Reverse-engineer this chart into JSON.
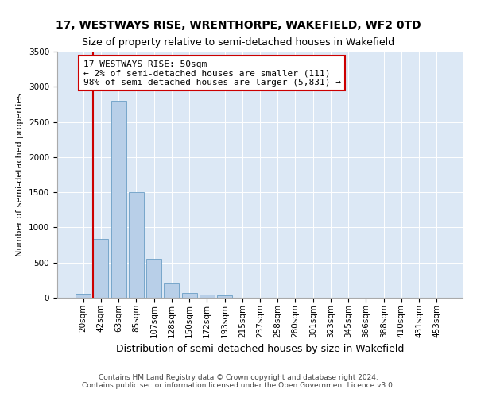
{
  "title": "17, WESTWAYS RISE, WRENTHORPE, WAKEFIELD, WF2 0TD",
  "subtitle": "Size of property relative to semi-detached houses in Wakefield",
  "xlabel": "Distribution of semi-detached houses by size in Wakefield",
  "ylabel": "Number of semi-detached properties",
  "categories": [
    "20sqm",
    "42sqm",
    "63sqm",
    "85sqm",
    "107sqm",
    "128sqm",
    "150sqm",
    "172sqm",
    "193sqm",
    "215sqm",
    "237sqm",
    "258sqm",
    "280sqm",
    "301sqm",
    "323sqm",
    "345sqm",
    "366sqm",
    "388sqm",
    "410sqm",
    "431sqm",
    "453sqm"
  ],
  "bar_values": [
    60,
    830,
    2800,
    1500,
    550,
    200,
    65,
    50,
    30,
    0,
    0,
    0,
    0,
    0,
    0,
    0,
    0,
    0,
    0,
    0,
    0
  ],
  "bar_color": "#b8cfe8",
  "bar_edge_color": "#6a9ec5",
  "property_line_color": "#cc0000",
  "annotation_text": "17 WESTWAYS RISE: 50sqm\n← 2% of semi-detached houses are smaller (111)\n98% of semi-detached houses are larger (5,831) →",
  "annotation_box_color": "#ffffff",
  "annotation_box_edge": "#cc0000",
  "ylim": [
    0,
    3500
  ],
  "yticks": [
    0,
    500,
    1000,
    1500,
    2000,
    2500,
    3000,
    3500
  ],
  "background_color": "#dce8f5",
  "footer_text": "Contains HM Land Registry data © Crown copyright and database right 2024.\nContains public sector information licensed under the Open Government Licence v3.0.",
  "title_fontsize": 10,
  "subtitle_fontsize": 9,
  "ylabel_fontsize": 8,
  "xlabel_fontsize": 9,
  "tick_fontsize": 7.5,
  "annotation_fontsize": 8,
  "footer_fontsize": 6.5
}
